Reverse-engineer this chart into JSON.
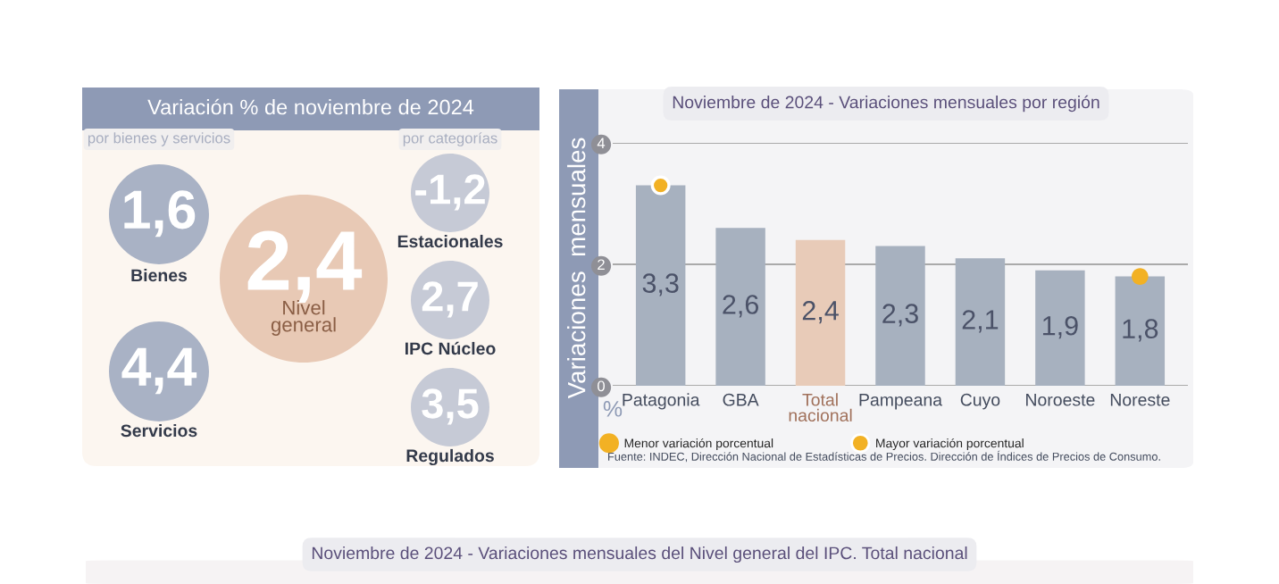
{
  "chart_data": [
    {
      "type": "other",
      "title": "Variación % de noviembre de 2024",
      "annotations": [
        "por bienes y servicios",
        "por categorías",
        "1,6",
        "Bienes",
        "4,4",
        "Servicios",
        "2,4",
        "Nivel\ngeneral",
        "-1,2",
        "Estacionales",
        "2,7",
        "IPC Núcleo",
        "3,5",
        "Regulados"
      ]
    },
    {
      "type": "bar",
      "title": "Noviembre de 2024 - Variaciones mensuales por región",
      "ylabel": "Variaciones  mensuales",
      "categories": [
        "Patagonia",
        "GBA",
        "Total\nnacional",
        "Pampeana",
        "Cuyo",
        "Noroeste",
        "Noreste"
      ],
      "values": [
        3.3,
        2.6,
        2.4,
        2.3,
        2.1,
        1.9,
        1.8
      ],
      "value_labels": [
        "3,3",
        "2,6",
        "2,4",
        "2,3",
        "2,1",
        "1,9",
        "1,8"
      ],
      "colors": [
        "#a7b1bf",
        "#a7b1bf",
        "#e8cbb8",
        "#a7b1bf",
        "#a7b1bf",
        "#a7b1bf",
        "#a7b1bf"
      ],
      "ylim": [
        0,
        4
      ],
      "yticks": [
        0,
        2,
        4
      ],
      "grid": "y",
      "legend": "bottom left",
      "series": [
        {
          "type": "scatter",
          "name": "Menor variación porcentual",
          "color": "#f2b124",
          "x": [
            "Noreste"
          ],
          "values": [
            1.8
          ],
          "marker": "circle"
        },
        {
          "type": "scatter",
          "name": "Mayor variación porcentual",
          "color": "#f2b124",
          "x": [
            "Patagonia"
          ],
          "values": [
            3.3
          ],
          "marker": "circle"
        }
      ],
      "annotations": [
        "%",
        "Fuente: INDEC, Dirección Nacional de Estadísticas de Precios. Dirección de Índices de Precios de Consumo."
      ]
    },
    {
      "type": "other",
      "title": "Noviembre de 2024 - Variaciones mensuales del Nivel general del IPC. Total nacional"
    }
  ]
}
